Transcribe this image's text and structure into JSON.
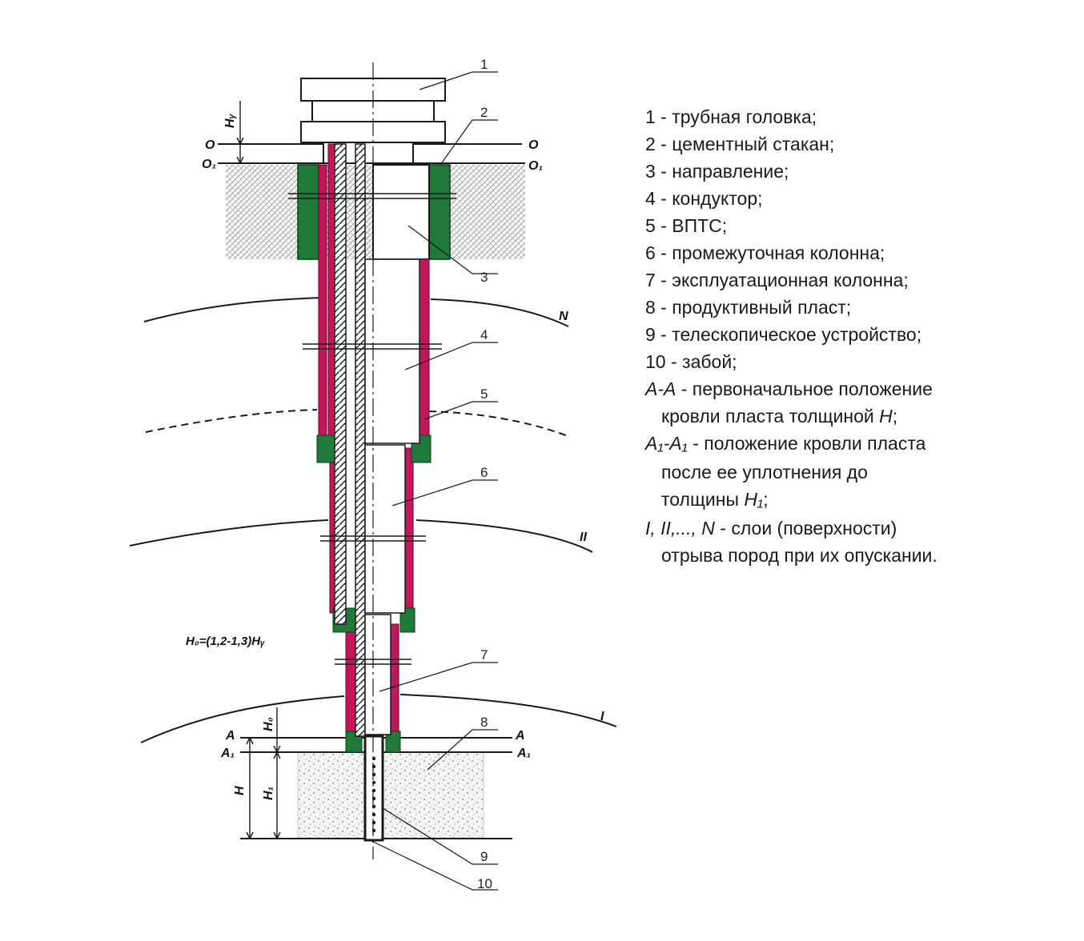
{
  "callouts": [
    "1",
    "2",
    "3",
    "4",
    "5",
    "6",
    "7",
    "8",
    "9",
    "10"
  ],
  "legend": {
    "items": [
      "1 - трубная головка;",
      "2 - цементный стакан;",
      "3 - направление;",
      "4 - кондуктор;",
      "5 - ВПТС;",
      "6 - промежуточная колонна;",
      "7 - эксплуатационная колонна;",
      "8 - продуктивный пласт;",
      "9 - телескопическое устройство;",
      "10 - забой;"
    ],
    "aa": {
      "sym": "A-A",
      "text1": " - первоначальное положение",
      "text2": "кровли пласта толщиной ",
      "h": "H",
      "end": ";"
    },
    "a1": {
      "sym": "A₁-A₁",
      "text1": " - положение кровли пласта",
      "text2": "после ее уплотнения до",
      "text3": "толщины ",
      "h": "H₁",
      "end": ";"
    },
    "layers": {
      "sym": "I, II,..., N",
      "text1": " - слои (поверхности)",
      "text2": "отрыва пород при их опускании."
    }
  },
  "labels": {
    "o_left": "O",
    "o_right": "O",
    "o1_left": "O₁",
    "o1_right": "O₁",
    "hy": "Hᵧ",
    "a_left": "A",
    "a_right": "A",
    "a1_left": "A₁",
    "a1_right": "A₁",
    "h": "H",
    "h1": "H₁",
    "h0": "H₀",
    "surface_n": "N",
    "surface_ii": "II",
    "surface_i": "I",
    "formula": "H₀=(1,2-1,3)Hᵧ"
  },
  "colors": {
    "casing": "#c2185b",
    "cement": "#1f7a3a",
    "line": "#1a1a1a",
    "soil_hatch": "#8a8a8a",
    "formation_dots": "#777777"
  }
}
